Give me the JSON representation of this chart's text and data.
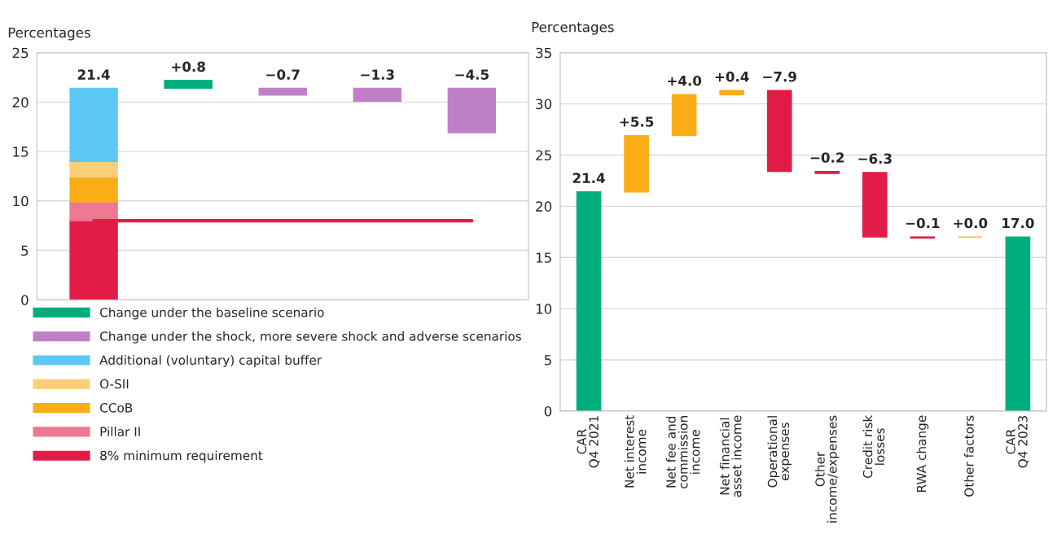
{
  "chart_data": [
    {
      "type": "bar",
      "ylabel": "Percentages",
      "categories": [
        null,
        null,
        null,
        null,
        null
      ],
      "stacked": true,
      "ylim": [
        0,
        25
      ],
      "yticks": [
        0,
        5,
        10,
        15,
        20,
        25
      ],
      "grid": "y",
      "legend": "bottom",
      "totals": [
        "21.4",
        null,
        null,
        null,
        null
      ],
      "series": [
        {
          "name": "8% minimum requirement",
          "color": "#e31c47",
          "values": [
            8.0,
            null,
            null,
            null,
            null
          ]
        },
        {
          "name": "Pillar II",
          "color": "#ee7890",
          "values": [
            1.9,
            null,
            null,
            null,
            null
          ]
        },
        {
          "name": "CCoB",
          "color": "#fbad18",
          "values": [
            2.5,
            null,
            null,
            null,
            null
          ]
        },
        {
          "name": "O-SII",
          "color": "#fcce78",
          "values": [
            1.6,
            null,
            null,
            null,
            null
          ]
        },
        {
          "name": "Additional (voluntary) capital buffer",
          "color": "#5bc8f5",
          "values": [
            7.4,
            null,
            null,
            null,
            null
          ]
        },
        {
          "name": "Change under the baseline scenario",
          "color": "#00ae7d",
          "values": [
            null,
            0.8,
            null,
            null,
            null
          ],
          "base": [
            null,
            21.4,
            null,
            null,
            null
          ],
          "value_labels": [
            null,
            "+0.8",
            null,
            null,
            null
          ]
        },
        {
          "name": "Change under the shock, more severe shock and adverse scenarios",
          "color": "#c080c8",
          "values": [
            null,
            null,
            -0.7,
            -1.3,
            -4.5
          ],
          "base": [
            null,
            null,
            21.4,
            21.4,
            21.4
          ],
          "value_labels": [
            null,
            null,
            "−0.7",
            "−1.3",
            "−4.5"
          ]
        },
        {
          "type": "line",
          "color": "#e31c47",
          "values": [
            8,
            8,
            8,
            8,
            8
          ]
        }
      ]
    },
    {
      "type": "bar",
      "ylabel": "Percentages",
      "categories": [
        "CAR\nQ4 2021",
        "Net interest\nincome",
        "Net fee and\ncommission\nincome",
        "Net financial\nasset income",
        "Operational\nexpenses",
        "Other\nincome/expenses",
        "Credit risk\nlosses",
        "RWA change",
        "Other factors",
        "CAR\nQ4 2023"
      ],
      "ylim": [
        0,
        35
      ],
      "yticks": [
        0,
        5,
        10,
        15,
        20,
        25,
        30,
        35
      ],
      "grid": "y",
      "values": [
        21.4,
        5.5,
        4.0,
        0.4,
        -7.9,
        -0.2,
        -6.3,
        -0.1,
        0.0,
        17.0
      ],
      "base": [
        0,
        21.4,
        26.9,
        30.9,
        31.3,
        23.4,
        23.3,
        17.0,
        17.0,
        0
      ],
      "colors": [
        "#00ae7d",
        "#fbad18",
        "#fbad18",
        "#fbad18",
        "#e31c47",
        "#e31c47",
        "#e31c47",
        "#e31c47",
        "#fbad18",
        "#00ae7d"
      ],
      "value_labels": [
        "21.4",
        "+5.5",
        "+4.0",
        "+0.4",
        "−7.9",
        "−0.2",
        "−6.3",
        "−0.1",
        "+0.0",
        "17.0"
      ]
    }
  ]
}
